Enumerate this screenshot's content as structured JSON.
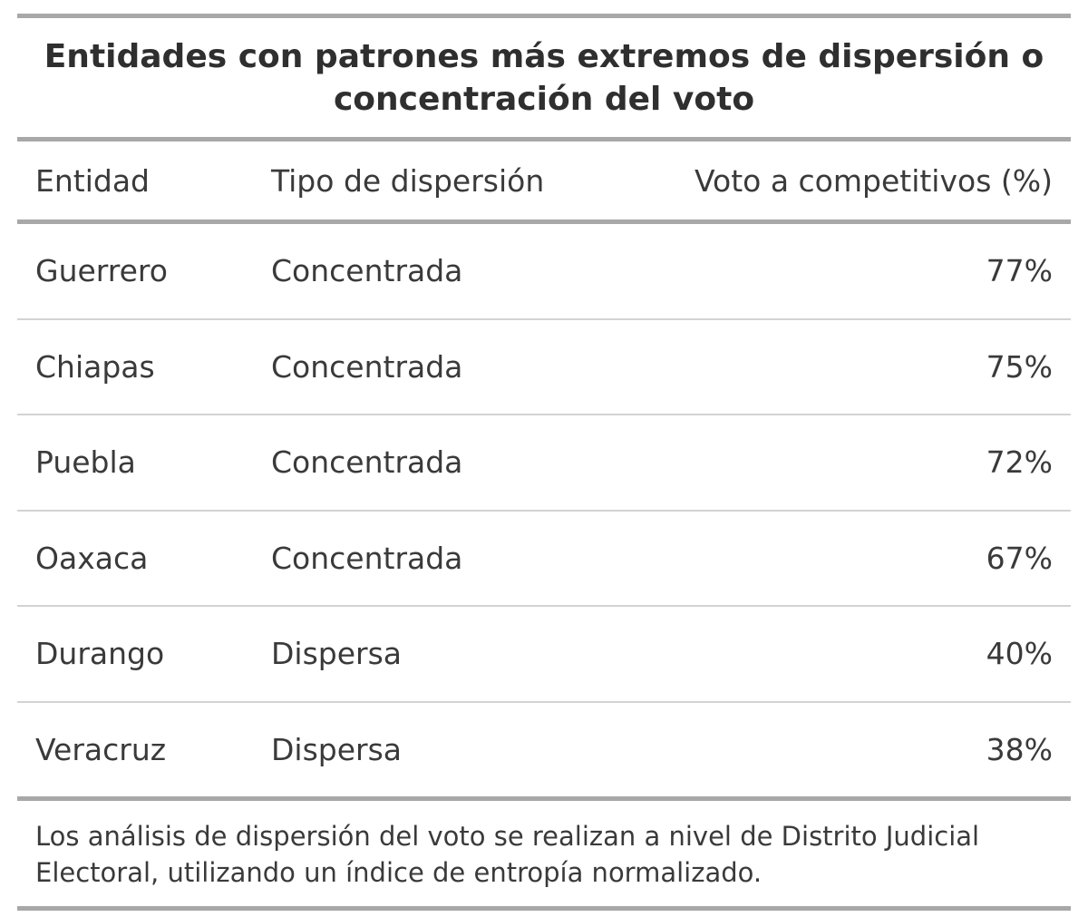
{
  "chart_data": {
    "type": "table",
    "title": "Entidades con patrones más extremos de dispersión o concentración del voto",
    "columns": [
      "Entidad",
      "Tipo de dispersión",
      "Voto a competitivos (%)"
    ],
    "rows": [
      [
        "Guerrero",
        "Concentrada",
        "77%"
      ],
      [
        "Chiapas",
        "Concentrada",
        "75%"
      ],
      [
        "Puebla",
        "Concentrada",
        "72%"
      ],
      [
        "Oaxaca",
        "Concentrada",
        "67%"
      ],
      [
        "Durango",
        "Dispersa",
        "40%"
      ],
      [
        "Veracruz",
        "Dispersa",
        "38%"
      ]
    ],
    "footnote": "Los análisis de dispersión del voto se realizan a nivel de Distrito Judicial Electoral, utilizando un índice de entropía normalizado."
  }
}
